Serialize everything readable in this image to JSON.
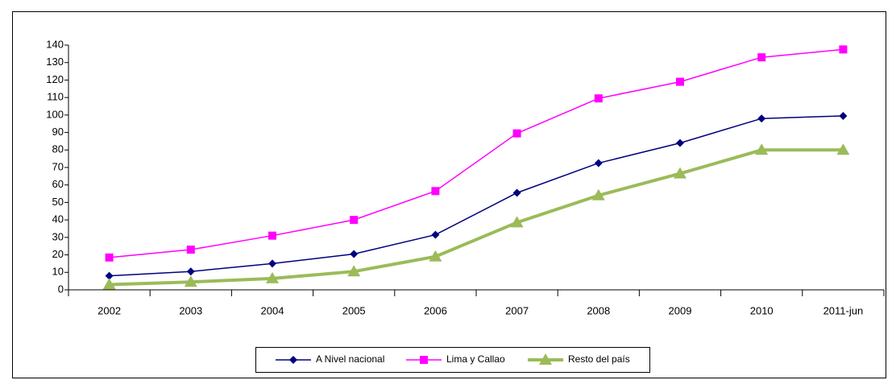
{
  "chart_data": {
    "type": "line",
    "categories": [
      "2002",
      "2003",
      "2004",
      "2005",
      "2006",
      "2007",
      "2008",
      "2009",
      "2010",
      "2011-jun"
    ],
    "series": [
      {
        "name": "A Nivel nacional",
        "color": "#000080",
        "marker": "diamond",
        "width": 1.5,
        "values": [
          8,
          10.5,
          15,
          20.5,
          31.5,
          55.5,
          72.5,
          84,
          98,
          99.5
        ]
      },
      {
        "name": "Lima y Callao",
        "color": "#ff00ff",
        "marker": "square",
        "width": 1.5,
        "values": [
          18.5,
          23,
          31,
          40,
          56.5,
          89.5,
          109.5,
          119,
          133,
          137.5
        ]
      },
      {
        "name": "Resto del país",
        "color": "#9bbb59",
        "marker": "triangle",
        "width": 4,
        "values": [
          3,
          4.5,
          6.5,
          10.5,
          19,
          38.5,
          54,
          66.5,
          80,
          80
        ]
      }
    ],
    "ylim": [
      0,
      140
    ],
    "yticks": [
      0,
      10,
      20,
      30,
      40,
      50,
      60,
      70,
      80,
      90,
      100,
      110,
      120,
      130,
      140
    ],
    "grid": false,
    "legend": "bottom"
  }
}
